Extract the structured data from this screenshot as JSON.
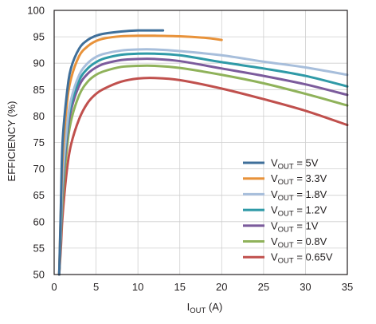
{
  "chart_data": {
    "type": "line",
    "title": "",
    "ylabel": "EFFICIENCY (%)",
    "xlabel": {
      "main": "I",
      "sub": "OUT",
      "unit": " (A)"
    },
    "xlim": [
      0,
      35
    ],
    "ylim": [
      50,
      100
    ],
    "xticks": [
      0,
      5,
      10,
      15,
      20,
      25,
      30,
      35
    ],
    "yticks": [
      50,
      55,
      60,
      65,
      70,
      75,
      80,
      85,
      90,
      95,
      100
    ],
    "grid": true,
    "legend_position": "bottom-right",
    "series": [
      {
        "name": "VOUT = 5V",
        "label": {
          "main": "V",
          "sub": "OUT",
          "rest": " = 5V"
        },
        "color": "#3f6f9a",
        "x": [
          0.6,
          0.8,
          1,
          1.5,
          2,
          3,
          4,
          5,
          6,
          8,
          10,
          12,
          13
        ],
        "y": [
          50,
          63,
          75,
          84,
          89,
          92.8,
          94.4,
          95.2,
          95.6,
          96,
          96.2,
          96.2,
          96.2
        ]
      },
      {
        "name": "VOUT = 3.3V",
        "label": {
          "main": "V",
          "sub": "OUT",
          "rest": " = 3.3V"
        },
        "color": "#e8923a",
        "x": [
          0.6,
          0.8,
          1,
          1.5,
          2,
          3,
          4,
          5,
          6,
          8,
          10,
          12,
          15,
          18,
          20
        ],
        "y": [
          50,
          62,
          72,
          82,
          87,
          91.4,
          93.2,
          94.2,
          94.7,
          95.1,
          95.2,
          95.2,
          95.1,
          94.8,
          94.4
        ]
      },
      {
        "name": "VOUT = 1.8V",
        "label": {
          "main": "V",
          "sub": "OUT",
          "rest": " = 1.8V"
        },
        "color": "#a7bedb",
        "x": [
          0.6,
          0.8,
          1,
          1.5,
          2,
          3,
          4,
          5,
          6,
          8,
          10,
          12,
          15,
          20,
          25,
          30,
          35
        ],
        "y": [
          50,
          60,
          68,
          77.5,
          83,
          87.8,
          90,
          91.2,
          91.8,
          92.4,
          92.6,
          92.6,
          92.3,
          91.5,
          90.3,
          89.2,
          87.8
        ]
      },
      {
        "name": "VOUT = 1.2V",
        "label": {
          "main": "V",
          "sub": "OUT",
          "rest": " = 1.2V"
        },
        "color": "#2f9aa7",
        "x": [
          0.6,
          0.8,
          1,
          1.5,
          2,
          3,
          4,
          5,
          6,
          8,
          10,
          12,
          15,
          20,
          25,
          30,
          35
        ],
        "y": [
          50,
          59,
          67,
          76.5,
          82,
          86.8,
          89,
          90.2,
          90.9,
          91.6,
          91.8,
          91.8,
          91.5,
          90.2,
          89,
          87.6,
          85.6
        ]
      },
      {
        "name": "VOUT = 1V",
        "label": {
          "main": "V",
          "sub": "OUT",
          "rest": " = 1V"
        },
        "color": "#7b5b9c",
        "x": [
          0.6,
          0.8,
          1,
          1.5,
          2,
          3,
          4,
          5,
          6,
          8,
          10,
          12,
          15,
          20,
          25,
          30,
          35
        ],
        "y": [
          50,
          58,
          66,
          75.5,
          81,
          85.8,
          88,
          89.2,
          89.9,
          90.6,
          90.8,
          90.8,
          90.4,
          89,
          87.6,
          86,
          84
        ]
      },
      {
        "name": "VOUT = 0.8V",
        "label": {
          "main": "V",
          "sub": "OUT",
          "rest": " = 0.8V"
        },
        "color": "#8fb25a",
        "x": [
          0.6,
          0.8,
          1,
          1.5,
          2,
          3,
          4,
          5,
          6,
          8,
          10,
          12,
          15,
          20,
          25,
          30,
          35
        ],
        "y": [
          50,
          57,
          64,
          73.5,
          79,
          84,
          86.5,
          87.8,
          88.5,
          89.3,
          89.5,
          89.5,
          89.1,
          87.8,
          86.2,
          84.2,
          82
        ]
      },
      {
        "name": "VOUT = 0.65V",
        "label": {
          "main": "V",
          "sub": "OUT",
          "rest": " = 0.65V"
        },
        "color": "#c0504d",
        "x": [
          0.6,
          0.8,
          1,
          1.5,
          2,
          3,
          4,
          5,
          6,
          8,
          10,
          12,
          15,
          20,
          25,
          30,
          35
        ],
        "y": [
          50,
          55,
          61,
          69.5,
          74.5,
          79.5,
          82.5,
          84.2,
          85.2,
          86.5,
          87.1,
          87.2,
          86.8,
          85.2,
          83.2,
          81,
          78.3
        ]
      }
    ]
  }
}
